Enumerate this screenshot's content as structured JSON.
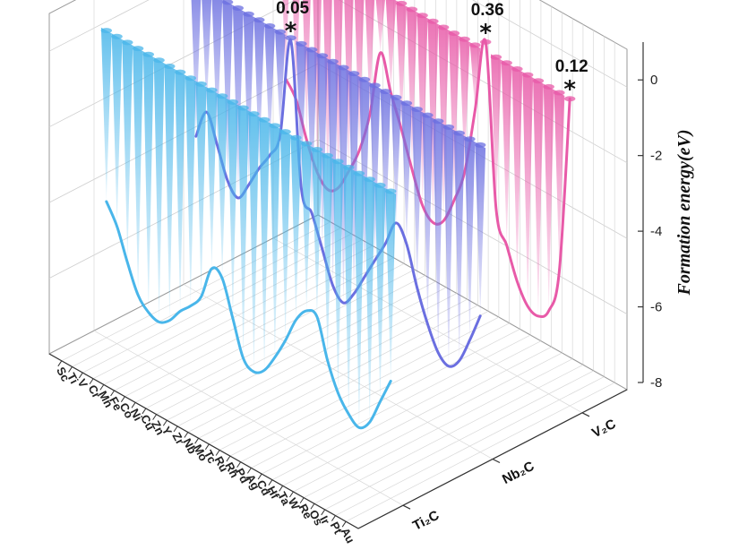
{
  "chart_data": {
    "type": "3d-line",
    "zlabel": "Formation energy(eV)",
    "zlim": [
      -8,
      1
    ],
    "z_ticks": [
      "-8",
      "-6",
      "-4",
      "-2",
      "0"
    ],
    "x_categories": [
      "Sc",
      "Ti",
      "V",
      "Cr",
      "Mn",
      "Fe",
      "Co",
      "Ni",
      "Cu",
      "Zn",
      "Y",
      "Zr",
      "Nb",
      "Mo",
      "Tc",
      "Ru",
      "Rh",
      "Pd",
      "Ag",
      "Cd",
      "Hf",
      "Ta",
      "W",
      "Re",
      "Os",
      "Ir",
      "Pt",
      "Au"
    ],
    "y_categories": [
      "Ti₂C",
      "Nb₂C",
      "V₂C"
    ],
    "series": [
      {
        "name": "Ti₂C",
        "color": "#49b6ea",
        "values": [
          -4.4,
          -4.9,
          -5.7,
          -6.4,
          -6.7,
          -6.8,
          -6.6,
          -6.2,
          -5.9,
          -5.5,
          -4.6,
          -4.7,
          -5.6,
          -6.5,
          -6.7,
          -6.5,
          -6.0,
          -5.4,
          -4.7,
          -4.3,
          -4.3,
          -5.3,
          -6.0,
          -6.4,
          -6.6,
          -6.3,
          -5.6,
          -4.9
        ]
      },
      {
        "name": "Nb₂C",
        "color": "#6b6fe0",
        "values": [
          -3.9,
          -3.1,
          -3.8,
          -4.6,
          -4.9,
          -4.4,
          -3.8,
          -3.3,
          -2.6,
          0.05,
          -3.7,
          -4.2,
          -5.0,
          -5.8,
          -6.1,
          -5.7,
          -5.1,
          -4.5,
          -3.9,
          -3.2,
          -3.6,
          -4.6,
          -5.4,
          -6.0,
          -6.2,
          -5.9,
          -5.2,
          -4.4
        ]
      },
      {
        "name": "V₂C",
        "color": "#e85aa8",
        "values": [
          -3.6,
          -4.0,
          -4.9,
          -5.6,
          -5.9,
          -5.7,
          -5.1,
          -4.4,
          -3.3,
          -1.5,
          -2.4,
          -3.2,
          -4.1,
          -4.9,
          -5.2,
          -5.0,
          -4.3,
          -3.4,
          -1.6,
          0.36,
          -3.9,
          -4.7,
          -5.5,
          -6.0,
          -6.1,
          -5.8,
          -4.6,
          0.12
        ]
      }
    ],
    "annotations": [
      {
        "text": "0.05",
        "series": "Nb₂C",
        "x": "Zn",
        "marker": "*"
      },
      {
        "text": "0.36",
        "series": "V₂C",
        "x": "Cd",
        "marker": "*"
      },
      {
        "text": "0.12",
        "series": "V₂C",
        "x": "Au",
        "marker": "*"
      }
    ],
    "grid": true
  }
}
